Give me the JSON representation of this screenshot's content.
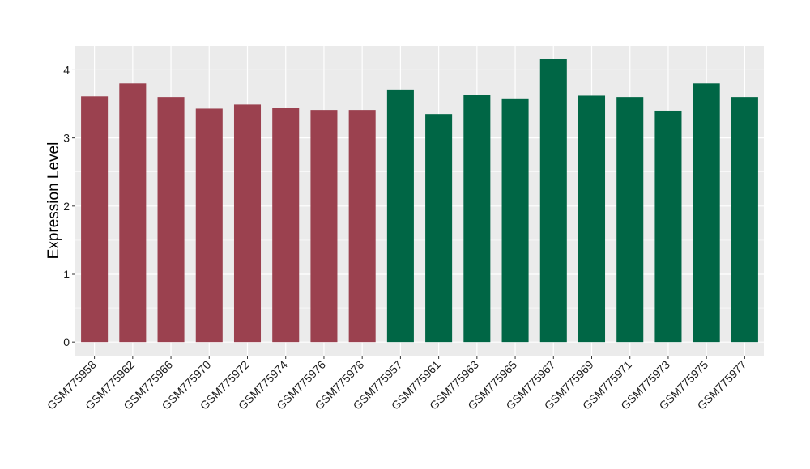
{
  "chart_data": {
    "type": "bar",
    "title": "",
    "xlabel": "",
    "ylabel": "Expression Level",
    "ylim": [
      -0.2,
      4.35
    ],
    "yticks": [
      0,
      1,
      2,
      3,
      4
    ],
    "grid": true,
    "legend": "none",
    "categories": [
      "GSM775958",
      "GSM775962",
      "GSM775966",
      "GSM775970",
      "GSM775972",
      "GSM775974",
      "GSM775976",
      "GSM775978",
      "GSM775957",
      "GSM775961",
      "GSM775963",
      "GSM775965",
      "GSM775967",
      "GSM775969",
      "GSM775971",
      "GSM775973",
      "GSM775975",
      "GSM775977"
    ],
    "values": [
      3.61,
      3.8,
      3.6,
      3.43,
      3.49,
      3.44,
      3.41,
      3.41,
      3.71,
      3.35,
      3.63,
      3.58,
      4.16,
      3.62,
      3.6,
      3.4,
      3.8,
      3.6
    ],
    "bar_colors": [
      "#9b414f",
      "#9b414f",
      "#9b414f",
      "#9b414f",
      "#9b414f",
      "#9b414f",
      "#9b414f",
      "#9b414f",
      "#006645",
      "#006645",
      "#006645",
      "#006645",
      "#006645",
      "#006645",
      "#006645",
      "#006645",
      "#006645",
      "#006645"
    ],
    "panel_background": "#ebebeb",
    "gridline_color": "#ffffff"
  }
}
